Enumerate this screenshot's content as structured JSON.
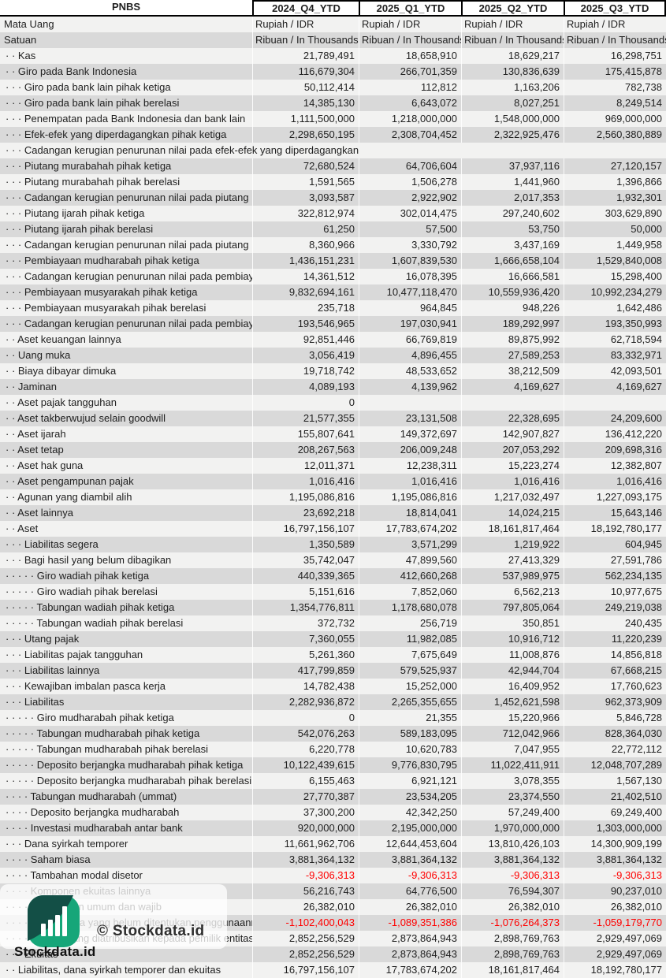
{
  "header": {
    "company": "PNBS",
    "periods": [
      "2024_Q4_YTD",
      "2025_Q1_YTD",
      "2025_Q2_YTD",
      "2025_Q3_YTD"
    ]
  },
  "meta": {
    "currency_label": "Mata Uang",
    "currency_values": [
      "Rupiah / IDR",
      "Rupiah / IDR",
      "Rupiah / IDR",
      "Rupiah / IDR"
    ],
    "unit_label": "Satuan",
    "unit_values": [
      "Ribuan / In Thousands",
      "Ribuan / In Thousands",
      "Ribuan / In Thousands",
      "Ribuan / In Thousands"
    ]
  },
  "rows": [
    {
      "label": "· · Kas",
      "values": [
        "21,789,491",
        "18,658,910",
        "18,629,217",
        "16,298,751"
      ]
    },
    {
      "label": "· · Giro pada Bank Indonesia",
      "values": [
        "116,679,304",
        "266,701,359",
        "130,836,639",
        "175,415,878"
      ]
    },
    {
      "label": "· · · Giro pada bank lain pihak ketiga",
      "values": [
        "50,112,414",
        "112,812",
        "1,163,206",
        "782,738"
      ]
    },
    {
      "label": "· · · Giro pada bank lain pihak berelasi",
      "values": [
        "14,385,130",
        "6,643,072",
        "8,027,251",
        "8,249,514"
      ]
    },
    {
      "label": "· · · Penempatan pada Bank Indonesia dan bank lain",
      "values": [
        "1,111,500,000",
        "1,218,000,000",
        "1,548,000,000",
        "969,000,000"
      ]
    },
    {
      "label": "· · · Efek-efek yang diperdagangkan pihak ketiga",
      "values": [
        "2,298,650,195",
        "2,308,704,452",
        "2,322,925,476",
        "2,560,380,889"
      ]
    },
    {
      "label": "· · · Cadangan kerugian penurunan nilai pada efek-efek yang diperdagangkan",
      "values": [
        "",
        "",
        "",
        ""
      ],
      "overflow": true
    },
    {
      "label": "· · · Piutang murabahah pihak ketiga",
      "values": [
        "72,680,524",
        "64,706,604",
        "37,937,116",
        "27,120,157"
      ]
    },
    {
      "label": "· · · Piutang murabahah pihak berelasi",
      "values": [
        "1,591,565",
        "1,506,278",
        "1,441,960",
        "1,396,866"
      ]
    },
    {
      "label": "· · · Cadangan kerugian penurunan nilai pada piutang murabahah",
      "values": [
        "3,093,587",
        "2,922,902",
        "2,017,353",
        "1,932,301"
      ]
    },
    {
      "label": "· · · Piutang ijarah pihak ketiga",
      "values": [
        "322,812,974",
        "302,014,475",
        "297,240,602",
        "303,629,890"
      ]
    },
    {
      "label": "· · · Piutang ijarah pihak berelasi",
      "values": [
        "61,250",
        "57,500",
        "53,750",
        "50,000"
      ]
    },
    {
      "label": "· · · Cadangan kerugian penurunan nilai pada piutang ijarah",
      "values": [
        "8,360,966",
        "3,330,792",
        "3,437,169",
        "1,449,958"
      ]
    },
    {
      "label": "· · · Pembiayaan mudharabah pihak ketiga",
      "values": [
        "1,436,151,231",
        "1,607,839,530",
        "1,666,658,104",
        "1,529,840,008"
      ]
    },
    {
      "label": "· · · Cadangan kerugian penurunan nilai pada pembiayaan mudharabah",
      "values": [
        "14,361,512",
        "16,078,395",
        "16,666,581",
        "15,298,400"
      ]
    },
    {
      "label": "· · · Pembiayaan musyarakah pihak ketiga",
      "values": [
        "9,832,694,161",
        "10,477,118,470",
        "10,559,936,420",
        "10,992,234,279"
      ]
    },
    {
      "label": "· · · Pembiayaan musyarakah pihak berelasi",
      "values": [
        "235,718",
        "964,845",
        "948,226",
        "1,642,486"
      ]
    },
    {
      "label": "· · · Cadangan kerugian penurunan nilai pada pembiayaan musyarakah",
      "values": [
        "193,546,965",
        "197,030,941",
        "189,292,997",
        "193,350,993"
      ]
    },
    {
      "label": "· · Aset keuangan lainnya",
      "values": [
        "92,851,446",
        "66,769,819",
        "89,875,992",
        "62,718,594"
      ]
    },
    {
      "label": "· · Uang muka",
      "values": [
        "3,056,419",
        "4,896,455",
        "27,589,253",
        "83,332,971"
      ]
    },
    {
      "label": "· · Biaya dibayar dimuka",
      "values": [
        "19,718,742",
        "48,533,652",
        "38,212,509",
        "42,093,501"
      ]
    },
    {
      "label": "· · Jaminan",
      "values": [
        "4,089,193",
        "4,139,962",
        "4,169,627",
        "4,169,627"
      ]
    },
    {
      "label": "· · Aset pajak tangguhan",
      "values": [
        "0",
        "",
        "",
        ""
      ]
    },
    {
      "label": "· · Aset takberwujud selain goodwill",
      "values": [
        "21,577,355",
        "23,131,508",
        "22,328,695",
        "24,209,600"
      ]
    },
    {
      "label": "· · Aset ijarah",
      "values": [
        "155,807,641",
        "149,372,697",
        "142,907,827",
        "136,412,220"
      ]
    },
    {
      "label": "· · Aset tetap",
      "values": [
        "208,267,563",
        "206,009,248",
        "207,053,292",
        "209,698,316"
      ]
    },
    {
      "label": "· · Aset hak guna",
      "values": [
        "12,011,371",
        "12,238,311",
        "15,223,274",
        "12,382,807"
      ]
    },
    {
      "label": "· · Aset pengampunan pajak",
      "values": [
        "1,016,416",
        "1,016,416",
        "1,016,416",
        "1,016,416"
      ]
    },
    {
      "label": "· · Agunan yang diambil alih",
      "values": [
        "1,195,086,816",
        "1,195,086,816",
        "1,217,032,497",
        "1,227,093,175"
      ]
    },
    {
      "label": "· · Aset lainnya",
      "values": [
        "23,692,218",
        "18,814,041",
        "14,024,215",
        "15,643,146"
      ]
    },
    {
      "label": "· · Aset",
      "values": [
        "16,797,156,107",
        "17,783,674,202",
        "18,161,817,464",
        "18,192,780,177"
      ]
    },
    {
      "label": "· · · Liabilitas segera",
      "values": [
        "1,350,589",
        "3,571,299",
        "1,219,922",
        "604,945"
      ]
    },
    {
      "label": "· · · Bagi hasil yang belum dibagikan",
      "values": [
        "35,742,047",
        "47,899,560",
        "27,413,329",
        "27,591,786"
      ]
    },
    {
      "label": "· · · · · Giro wadiah pihak ketiga",
      "values": [
        "440,339,365",
        "412,660,268",
        "537,989,975",
        "562,234,135"
      ]
    },
    {
      "label": "· · · · · Giro wadiah pihak berelasi",
      "values": [
        "5,151,616",
        "7,852,060",
        "6,562,213",
        "10,977,675"
      ]
    },
    {
      "label": "· · · · · Tabungan wadiah pihak ketiga",
      "values": [
        "1,354,776,811",
        "1,178,680,078",
        "797,805,064",
        "249,219,038"
      ]
    },
    {
      "label": "· · · · · Tabungan wadiah pihak berelasi",
      "values": [
        "372,732",
        "256,719",
        "350,851",
        "240,435"
      ]
    },
    {
      "label": "· · · Utang pajak",
      "values": [
        "7,360,055",
        "11,982,085",
        "10,916,712",
        "11,220,239"
      ]
    },
    {
      "label": "· · · Liabilitas pajak tangguhan",
      "values": [
        "5,261,360",
        "7,675,649",
        "11,008,876",
        "14,856,818"
      ]
    },
    {
      "label": "· · · Liabilitas lainnya",
      "values": [
        "417,799,859",
        "579,525,937",
        "42,944,704",
        "67,668,215"
      ]
    },
    {
      "label": "· · · Kewajiban imbalan pasca kerja",
      "values": [
        "14,782,438",
        "15,252,000",
        "16,409,952",
        "17,760,623"
      ]
    },
    {
      "label": "· · · Liabilitas",
      "values": [
        "2,282,936,872",
        "2,265,355,655",
        "1,452,621,598",
        "962,373,909"
      ]
    },
    {
      "label": "· · · · · Giro mudharabah pihak ketiga",
      "values": [
        "0",
        "21,355",
        "15,220,966",
        "5,846,728"
      ]
    },
    {
      "label": "· · · · · Tabungan mudharabah pihak ketiga",
      "values": [
        "542,076,263",
        "589,183,095",
        "712,042,966",
        "828,364,030"
      ]
    },
    {
      "label": "· · · · · Tabungan mudharabah pihak berelasi",
      "values": [
        "6,220,778",
        "10,620,783",
        "7,047,955",
        "22,772,112"
      ]
    },
    {
      "label": "· · · · · Deposito berjangka mudharabah pihak ketiga",
      "values": [
        "10,122,439,615",
        "9,776,830,795",
        "11,022,411,911",
        "12,048,707,289"
      ]
    },
    {
      "label": "· · · · · Deposito berjangka mudharabah pihak berelasi",
      "values": [
        "6,155,463",
        "6,921,121",
        "3,078,355",
        "1,567,130"
      ]
    },
    {
      "label": "· · · · Tabungan mudharabah (ummat)",
      "values": [
        "27,770,387",
        "23,534,205",
        "23,374,550",
        "21,402,510"
      ]
    },
    {
      "label": "· · · · Deposito berjangka mudharabah",
      "values": [
        "37,300,200",
        "42,342,250",
        "57,249,400",
        "69,249,400"
      ]
    },
    {
      "label": "· · · · Investasi mudharabah antar bank",
      "values": [
        "920,000,000",
        "2,195,000,000",
        "1,970,000,000",
        "1,303,000,000"
      ]
    },
    {
      "label": "· · · Dana syirkah temporer",
      "values": [
        "11,661,962,706",
        "12,644,453,604",
        "13,810,426,103",
        "14,300,909,199"
      ]
    },
    {
      "label": "· · · · Saham biasa",
      "values": [
        "3,881,364,132",
        "3,881,364,132",
        "3,881,364,132",
        "3,881,364,132"
      ]
    },
    {
      "label": "· · · · Tambahan modal disetor",
      "values": [
        "-9,306,313",
        "-9,306,313",
        "-9,306,313",
        "-9,306,313"
      ]
    },
    {
      "label": "· · · · Komponen ekuitas lainnya",
      "values": [
        "56,216,743",
        "64,776,500",
        "76,594,307",
        "90,237,010"
      ]
    },
    {
      "label": "· · · · · Cadangan umum dan wajib",
      "values": [
        "26,382,010",
        "26,382,010",
        "26,382,010",
        "26,382,010"
      ]
    },
    {
      "label": "· · · · · Saldo laba yang belum ditentukan penggunaannya",
      "values": [
        "-1,102,400,043",
        "-1,089,351,386",
        "-1,076,264,373",
        "-1,059,179,770"
      ]
    },
    {
      "label": "· · · · Ekuitas yang diatribusikan kepada pemilik entitas induk",
      "values": [
        "2,852,256,529",
        "2,873,864,943",
        "2,898,769,763",
        "2,929,497,069"
      ]
    },
    {
      "label": "· · · Ekuitas",
      "values": [
        "2,852,256,529",
        "2,873,864,943",
        "2,898,769,763",
        "2,929,497,069"
      ]
    },
    {
      "label": "· · Liabilitas, dana syirkah temporer dan ekuitas",
      "values": [
        "16,797,156,107",
        "17,783,674,202",
        "18,161,817,464",
        "18,192,780,177"
      ]
    }
  ],
  "watermark": {
    "copyright": "© Stockdata.id",
    "brand": "Stockdata.id"
  },
  "colors": {
    "row_light": "#f2f2f1",
    "row_dark": "#d9d9d9",
    "negative_value": "#ff0000",
    "logo_dark_teal": "#134f46",
    "logo_green": "#16a679",
    "watermark_text": "#2e2e2e"
  }
}
